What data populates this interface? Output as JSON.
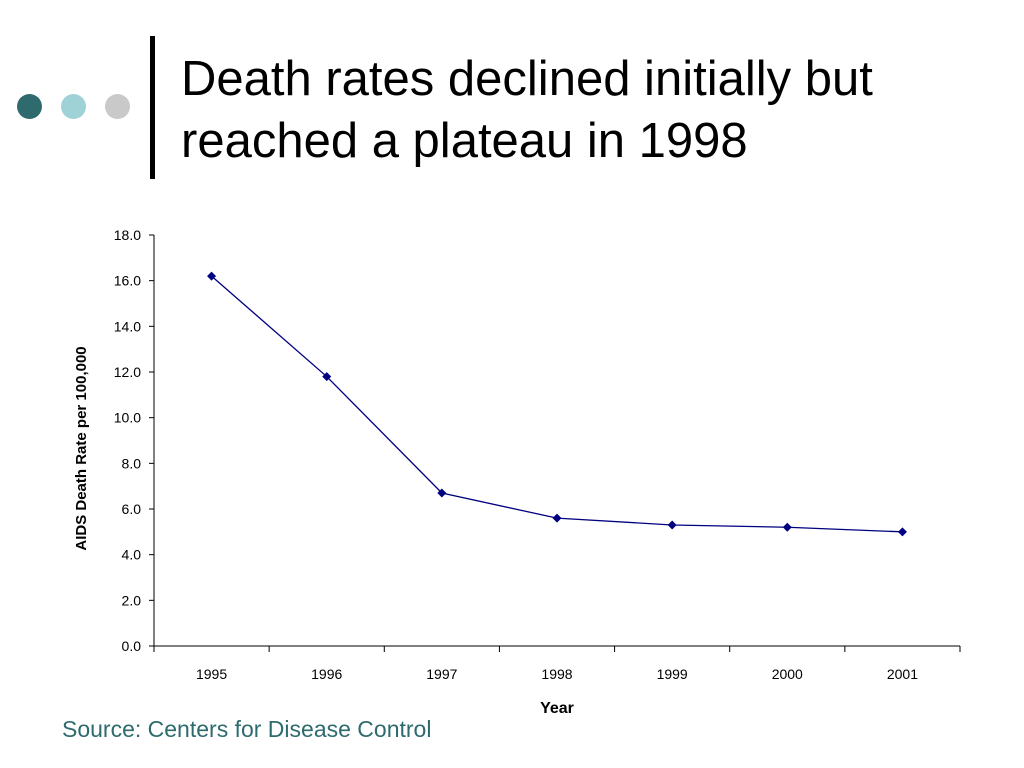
{
  "slide": {
    "title_line1": "Death rates declined initially but",
    "title_line2": "reached a plateau in 1998",
    "source": "Source: Centers for Disease Control"
  },
  "colors": {
    "dot_dark": "#2f6b6e",
    "dot_light": "#9fd2d6",
    "dot_gray": "#c9c9c9",
    "line": "#000080",
    "source_text": "#2e6b6e"
  },
  "chart_data": {
    "type": "line",
    "title": "",
    "xlabel": "Year",
    "ylabel": "AIDS Death Rate per 100,000",
    "categories": [
      "1995",
      "1996",
      "1997",
      "1998",
      "1999",
      "2000",
      "2001"
    ],
    "series": [
      {
        "values": [
          16.2,
          11.8,
          6.7,
          5.6,
          5.3,
          5.2,
          5.0
        ]
      }
    ],
    "ylim": [
      0,
      18
    ],
    "yticks": [
      "0.0",
      "2.0",
      "4.0",
      "6.0",
      "8.0",
      "10.0",
      "12.0",
      "14.0",
      "16.0",
      "18.0"
    ],
    "grid": false,
    "legend": false,
    "marker": "diamond"
  }
}
